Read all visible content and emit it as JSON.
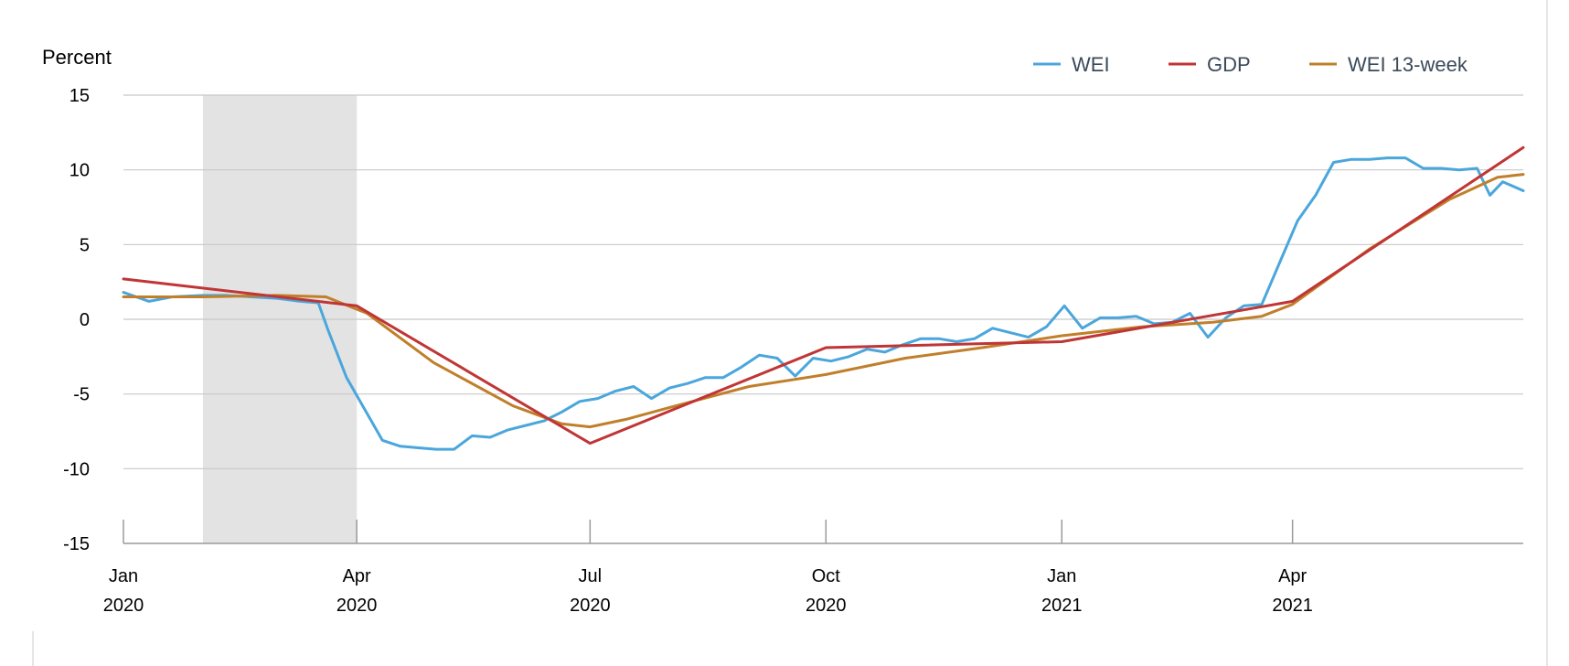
{
  "chart_data": {
    "type": "line",
    "ylabel": "Percent",
    "ylim": [
      -15,
      15
    ],
    "yticks": [
      15,
      10,
      5,
      0,
      -5,
      -10,
      -15
    ],
    "xlim": [
      "2020-01-01",
      "2021-06-30"
    ],
    "xticks": [
      {
        "date": "2020-01-01",
        "month": "Jan",
        "year": "2020"
      },
      {
        "date": "2020-04-01",
        "month": "Apr",
        "year": "2020"
      },
      {
        "date": "2020-07-01",
        "month": "Jul",
        "year": "2020"
      },
      {
        "date": "2020-10-01",
        "month": "Oct",
        "year": "2020"
      },
      {
        "date": "2021-01-01",
        "month": "Jan",
        "year": "2021"
      },
      {
        "date": "2021-04-01",
        "month": "Apr",
        "year": "2021"
      }
    ],
    "grid": true,
    "legend_position": "top-right",
    "shaded_period": {
      "start": "2020-02-01",
      "end": "2020-04-01",
      "color": "#e3e3e3"
    },
    "series": [
      {
        "name": "WEI",
        "color": "#4aa6dc",
        "points": [
          [
            "2020-01-01",
            1.8
          ],
          [
            "2020-01-11",
            1.2
          ],
          [
            "2020-01-20",
            1.5
          ],
          [
            "2020-02-01",
            1.6
          ],
          [
            "2020-02-10",
            1.6
          ],
          [
            "2020-02-20",
            1.5
          ],
          [
            "2020-03-01",
            1.4
          ],
          [
            "2020-03-10",
            1.2
          ],
          [
            "2020-03-17",
            1.1
          ],
          [
            "2020-03-21",
            -0.8
          ],
          [
            "2020-03-28",
            -3.9
          ],
          [
            "2020-04-04",
            -6.0
          ],
          [
            "2020-04-11",
            -8.1
          ],
          [
            "2020-04-18",
            -8.5
          ],
          [
            "2020-04-25",
            -8.6
          ],
          [
            "2020-05-02",
            -8.7
          ],
          [
            "2020-05-09",
            -8.7
          ],
          [
            "2020-05-16",
            -7.8
          ],
          [
            "2020-05-23",
            -7.9
          ],
          [
            "2020-05-30",
            -7.4
          ],
          [
            "2020-06-06",
            -7.1
          ],
          [
            "2020-06-13",
            -6.8
          ],
          [
            "2020-06-20",
            -6.2
          ],
          [
            "2020-06-27",
            -5.5
          ],
          [
            "2020-07-04",
            -5.3
          ],
          [
            "2020-07-11",
            -4.8
          ],
          [
            "2020-07-18",
            -4.5
          ],
          [
            "2020-07-25",
            -5.3
          ],
          [
            "2020-08-01",
            -4.6
          ],
          [
            "2020-08-08",
            -4.3
          ],
          [
            "2020-08-15",
            -3.9
          ],
          [
            "2020-08-22",
            -3.9
          ],
          [
            "2020-08-29",
            -3.2
          ],
          [
            "2020-09-05",
            -2.4
          ],
          [
            "2020-09-12",
            -2.6
          ],
          [
            "2020-09-19",
            -3.8
          ],
          [
            "2020-09-26",
            -2.6
          ],
          [
            "2020-10-03",
            -2.8
          ],
          [
            "2020-10-10",
            -2.5
          ],
          [
            "2020-10-17",
            -2.0
          ],
          [
            "2020-10-24",
            -2.2
          ],
          [
            "2020-10-31",
            -1.7
          ],
          [
            "2020-11-07",
            -1.3
          ],
          [
            "2020-11-14",
            -1.3
          ],
          [
            "2020-11-21",
            -1.5
          ],
          [
            "2020-11-28",
            -1.3
          ],
          [
            "2020-12-05",
            -0.6
          ],
          [
            "2020-12-12",
            -0.9
          ],
          [
            "2020-12-19",
            -1.2
          ],
          [
            "2020-12-26",
            -0.5
          ],
          [
            "2021-01-02",
            0.9
          ],
          [
            "2021-01-09",
            -0.6
          ],
          [
            "2021-01-16",
            0.1
          ],
          [
            "2021-01-23",
            0.1
          ],
          [
            "2021-01-30",
            0.2
          ],
          [
            "2021-02-06",
            -0.3
          ],
          [
            "2021-02-13",
            -0.2
          ],
          [
            "2021-02-20",
            0.4
          ],
          [
            "2021-02-27",
            -1.2
          ],
          [
            "2021-03-06",
            0.1
          ],
          [
            "2021-03-13",
            0.9
          ],
          [
            "2021-03-20",
            1.0
          ],
          [
            "2021-03-27",
            3.8
          ],
          [
            "2021-04-03",
            6.6
          ],
          [
            "2021-04-10",
            8.3
          ],
          [
            "2021-04-17",
            10.5
          ],
          [
            "2021-04-24",
            10.7
          ],
          [
            "2021-05-01",
            10.7
          ],
          [
            "2021-05-08",
            10.8
          ],
          [
            "2021-05-15",
            10.8
          ],
          [
            "2021-05-22",
            10.1
          ],
          [
            "2021-05-29",
            10.1
          ],
          [
            "2021-06-05",
            10.0
          ],
          [
            "2021-06-12",
            10.1
          ],
          [
            "2021-06-17",
            8.3
          ],
          [
            "2021-06-22",
            9.2
          ],
          [
            "2021-06-30",
            8.6
          ]
        ]
      },
      {
        "name": "GDP",
        "color": "#c03535",
        "points": [
          [
            "2020-01-01",
            2.7
          ],
          [
            "2020-04-01",
            0.9
          ],
          [
            "2020-07-01",
            -8.3
          ],
          [
            "2020-10-01",
            -1.9
          ],
          [
            "2021-01-01",
            -1.5
          ],
          [
            "2021-04-01",
            1.2
          ],
          [
            "2021-06-30",
            11.5
          ]
        ]
      },
      {
        "name": "WEI 13-week",
        "color": "#c07f2a",
        "points": [
          [
            "2020-01-01",
            1.5
          ],
          [
            "2020-02-01",
            1.5
          ],
          [
            "2020-03-01",
            1.6
          ],
          [
            "2020-03-20",
            1.5
          ],
          [
            "2020-04-05",
            0.4
          ],
          [
            "2020-05-01",
            -2.9
          ],
          [
            "2020-06-01",
            -5.8
          ],
          [
            "2020-06-20",
            -7.0
          ],
          [
            "2020-07-01",
            -7.2
          ],
          [
            "2020-07-15",
            -6.7
          ],
          [
            "2020-08-01",
            -5.9
          ],
          [
            "2020-09-01",
            -4.5
          ],
          [
            "2020-10-01",
            -3.7
          ],
          [
            "2020-11-01",
            -2.6
          ],
          [
            "2020-12-01",
            -1.9
          ],
          [
            "2021-01-01",
            -1.1
          ],
          [
            "2021-02-01",
            -0.5
          ],
          [
            "2021-03-01",
            -0.2
          ],
          [
            "2021-03-20",
            0.2
          ],
          [
            "2021-04-01",
            1.0
          ],
          [
            "2021-05-01",
            4.7
          ],
          [
            "2021-06-01",
            8.0
          ],
          [
            "2021-06-20",
            9.5
          ],
          [
            "2021-06-30",
            9.7
          ]
        ]
      }
    ]
  }
}
